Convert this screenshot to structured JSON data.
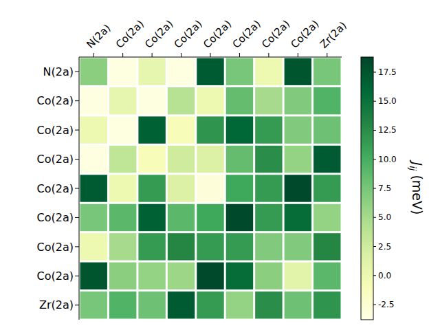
{
  "chart_data": {
    "type": "heatmap",
    "x_labels": [
      "N(2a)",
      "Co(2a)",
      "Co(2a)",
      "Co(2a)",
      "Co(2a)",
      "Co(2a)",
      "Co(2a)",
      "Co(2a)",
      "Zr(2a)"
    ],
    "y_labels": [
      "N(2a)",
      "Co(2a)",
      "Co(2a)",
      "Co(2a)",
      "Co(2a)",
      "Co(2a)",
      "Co(2a)",
      "Co(2a)",
      "Zr(2a)"
    ],
    "cells": [
      [
        6.5,
        -3.5,
        0.5,
        -3.5,
        17,
        7.5,
        0,
        17.5,
        7.5
      ],
      [
        -3.5,
        0.5,
        -3.5,
        4,
        0,
        8.5,
        5,
        7,
        9.5
      ],
      [
        0,
        -3.5,
        16.5,
        -1,
        12,
        16,
        11.5,
        7,
        8
      ],
      [
        -3.5,
        3.5,
        -1,
        2.5,
        1.5,
        8.5,
        12.5,
        6,
        17
      ],
      [
        17,
        0,
        11.5,
        1.5,
        -3,
        10.5,
        11.5,
        18.5,
        11.5
      ],
      [
        7.5,
        9,
        16.5,
        9,
        10.5,
        18.5,
        11.5,
        15.5,
        6
      ],
      [
        0,
        5,
        11.5,
        13,
        11.5,
        11.5,
        7,
        7,
        13
      ],
      [
        17.5,
        6.5,
        6,
        5.5,
        18.5,
        15.5,
        6.5,
        1,
        9
      ],
      [
        7.5,
        9.5,
        8,
        17,
        11.5,
        6,
        12.5,
        8,
        12
      ]
    ],
    "colorbar": {
      "label": "Jij (meV)",
      "range": [
        -3.8,
        18.8
      ],
      "ticks": [
        -2.5,
        {
          "value": 0,
          "label": "0.0"
        },
        2.5,
        {
          "value": 5,
          "label": "5.0"
        },
        7.5,
        {
          "value": 10,
          "label": "10.0"
        },
        12.5,
        {
          "value": 15,
          "label": "15.0"
        },
        17.5
      ]
    }
  }
}
